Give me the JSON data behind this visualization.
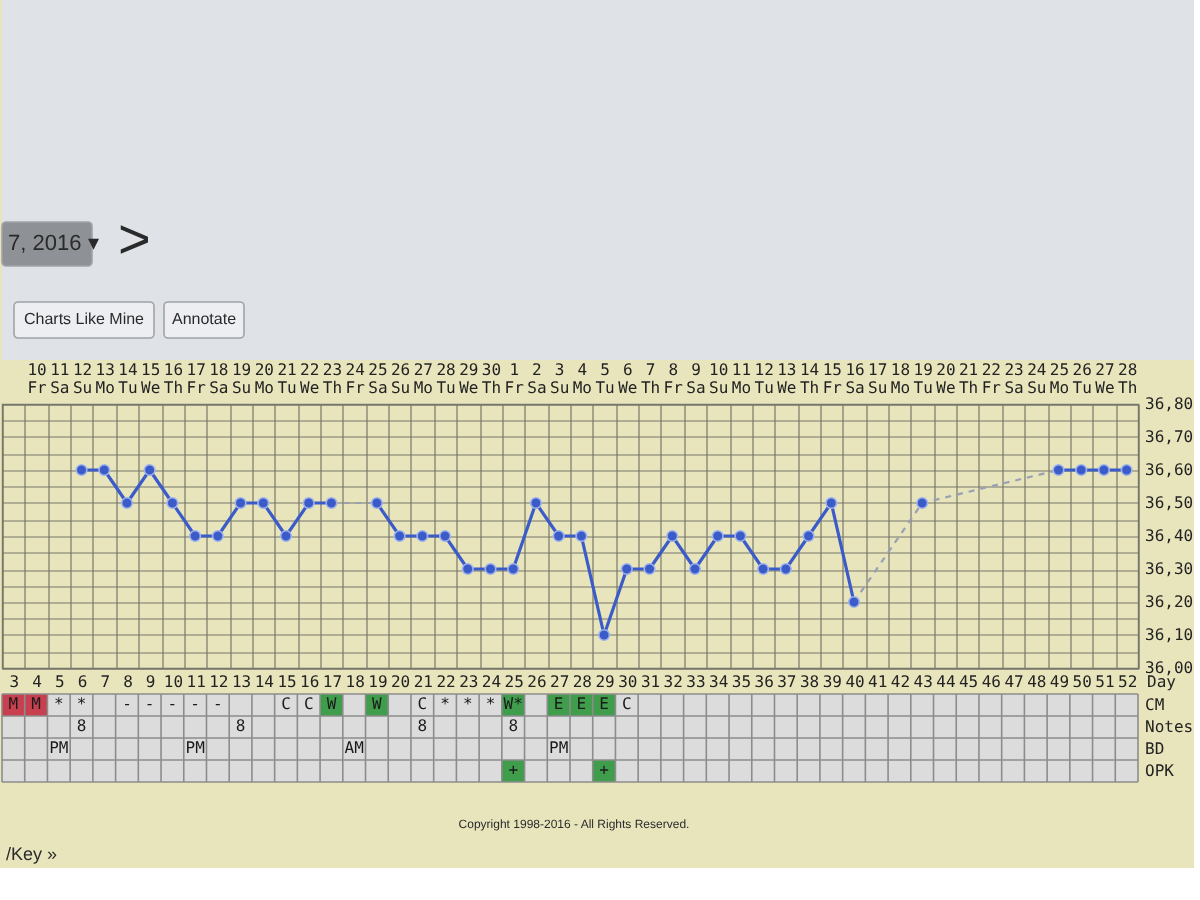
{
  "chart_data": [
    {
      "type": "line",
      "categories": [
        null,
        "10 Fr",
        "11 Sa",
        "12 Su",
        "13 Mo",
        "14 Tu",
        "15 We",
        "16 Th",
        "17 Fr",
        "18 Sa",
        "19 Su",
        "20 Mo",
        "21 Tu",
        "22 We",
        "23 Th",
        "24 Fr",
        "25 Sa",
        "26 Su",
        "27 Mo",
        "28 Tu",
        "29 We",
        "30 Th",
        "1 Fr",
        "2 Sa",
        "3 Su",
        "4 Mo",
        "5 Tu",
        "6 We",
        "7 Th",
        "8 Fr",
        "9 Sa",
        "10 Su",
        "11 Mo",
        "12 Tu",
        "13 We",
        "14 Th",
        "15 Fr",
        "16 Sa",
        "17 Su",
        "18 Mo",
        "19 Tu",
        "20 We",
        "21 Th",
        "22 Fr",
        "23 Sa",
        "24 Su",
        "25 Mo",
        "26 Tu",
        "27 We",
        "28 Th"
      ],
      "x2lim": [
        2.5,
        52.5
      ],
      "x2ticks": [
        3,
        4,
        5,
        6,
        7,
        8,
        9,
        10,
        11,
        12,
        13,
        14,
        15,
        16,
        17,
        18,
        19,
        20,
        21,
        22,
        23,
        24,
        25,
        26,
        27,
        28,
        29,
        30,
        31,
        32,
        33,
        34,
        35,
        36,
        37,
        38,
        39,
        40,
        41,
        42,
        43,
        44,
        45,
        46,
        47,
        48,
        49,
        50,
        51,
        52
      ],
      "x2label": "Day",
      "series": [
        {
          "color": "#9aa0b4",
          "line_style": "dashed",
          "marker": "none",
          "values": [
            null,
            null,
            null,
            null,
            null,
            null,
            null,
            null,
            null,
            null,
            null,
            null,
            null,
            null,
            36.5,
            null,
            36.5,
            null,
            null,
            null,
            null,
            null,
            null,
            null,
            null,
            null,
            null,
            null,
            null,
            null,
            null,
            null,
            null,
            null,
            null,
            null,
            null,
            null,
            null,
            null,
            null,
            null,
            null,
            null,
            null,
            null,
            null,
            null,
            null,
            null
          ]
        },
        {
          "color": "#9aa0b4",
          "line_style": "dashed",
          "marker": "none",
          "values": [
            null,
            null,
            null,
            null,
            null,
            null,
            null,
            null,
            null,
            null,
            null,
            null,
            null,
            null,
            null,
            null,
            null,
            null,
            null,
            null,
            null,
            null,
            null,
            null,
            null,
            null,
            null,
            null,
            null,
            null,
            null,
            null,
            null,
            null,
            null,
            null,
            null,
            36.2,
            null,
            null,
            36.5,
            null,
            null,
            null,
            null,
            null,
            36.6,
            null,
            null,
            null
          ]
        },
        {
          "color": "#3b5cc8",
          "values": [
            null,
            null,
            null,
            36.6,
            36.6,
            36.5,
            36.6,
            36.5,
            36.4,
            36.4,
            36.5,
            36.5,
            36.4,
            36.5,
            36.5,
            null,
            36.5,
            36.4,
            36.4,
            36.4,
            36.3,
            36.3,
            36.3,
            36.5,
            36.4,
            36.4,
            36.1,
            36.3,
            36.3,
            36.4,
            36.3,
            36.4,
            36.4,
            36.3,
            36.3,
            36.4,
            36.5,
            36.2,
            null,
            null,
            36.5,
            null,
            null,
            null,
            null,
            null,
            36.6,
            36.6,
            36.6,
            36.6
          ]
        }
      ],
      "ylim": [
        36.0,
        36.8
      ],
      "yticks": [
        {
          "value": 36.0,
          "label": "36,00"
        },
        {
          "value": 36.05,
          "label": null
        },
        {
          "value": 36.1,
          "label": "36,10"
        },
        {
          "value": 36.15,
          "label": null
        },
        {
          "value": 36.2,
          "label": "36,20"
        },
        {
          "value": 36.25,
          "label": null
        },
        {
          "value": 36.3,
          "label": "36,30"
        },
        {
          "value": 36.35,
          "label": null
        },
        {
          "value": 36.4,
          "label": "36,40"
        },
        {
          "value": 36.45,
          "label": null
        },
        {
          "value": 36.5,
          "label": "36,50"
        },
        {
          "value": 36.55,
          "label": null
        },
        {
          "value": 36.6,
          "label": "36,60"
        },
        {
          "value": 36.65,
          "label": null
        },
        {
          "value": 36.7,
          "label": "36,70"
        },
        {
          "value": 36.75,
          "label": null
        },
        {
          "value": 36.8,
          "label": "36,80"
        }
      ],
      "grid": true,
      "marker": "circle",
      "line_style": "solid",
      "annotations": [
        "7, 2016 ▾",
        ">",
        "Charts Like Mine",
        "Annotate",
        "Copyright 1998-2016 - All Rights Reserved.",
        "/Key »"
      ]
    },
    {
      "type": "other",
      "categories": [
        null,
        null,
        null,
        null,
        null,
        null,
        null,
        null,
        null,
        null,
        null,
        null,
        null,
        null,
        null,
        null,
        null,
        null,
        null,
        null,
        null,
        null,
        null,
        null,
        null,
        null,
        null,
        null,
        null,
        null,
        null,
        null,
        null,
        null,
        null,
        null,
        null,
        null,
        null,
        null,
        null,
        null,
        null,
        null,
        null,
        null,
        null,
        null,
        null,
        null
      ],
      "y_categories": [
        "CM",
        "Notes",
        "BD",
        "OPK"
      ],
      "cell_labels": [
        [
          "M",
          "M",
          "*",
          "*",
          null,
          "-",
          "-",
          "-",
          "-",
          "-",
          null,
          null,
          "C",
          "C",
          "W",
          null,
          "W",
          null,
          "C",
          "*",
          "*",
          "*",
          "W*",
          null,
          "E",
          "E",
          "E",
          "C",
          null,
          null,
          null,
          null,
          null,
          null,
          null,
          null,
          null,
          null,
          null,
          null,
          null,
          null,
          null,
          null,
          null,
          null,
          null,
          null,
          null,
          null
        ],
        [
          null,
          null,
          null,
          "8",
          null,
          null,
          null,
          null,
          null,
          null,
          "8",
          null,
          null,
          null,
          null,
          null,
          null,
          null,
          "8",
          null,
          null,
          null,
          "8",
          null,
          null,
          null,
          null,
          null,
          null,
          null,
          null,
          null,
          null,
          null,
          null,
          null,
          null,
          null,
          null,
          null,
          null,
          null,
          null,
          null,
          null,
          null,
          null,
          null,
          null,
          null
        ],
        [
          null,
          null,
          "PM",
          null,
          null,
          null,
          null,
          null,
          "PM",
          null,
          null,
          null,
          null,
          null,
          null,
          "AM",
          null,
          null,
          null,
          null,
          null,
          null,
          null,
          null,
          "PM",
          null,
          null,
          null,
          null,
          null,
          null,
          null,
          null,
          null,
          null,
          null,
          null,
          null,
          null,
          null,
          null,
          null,
          null,
          null,
          null,
          null,
          null,
          null,
          null,
          null
        ],
        [
          null,
          null,
          null,
          null,
          null,
          null,
          null,
          null,
          null,
          null,
          null,
          null,
          null,
          null,
          null,
          null,
          null,
          null,
          null,
          null,
          null,
          null,
          "+",
          null,
          null,
          null,
          "+",
          null,
          null,
          null,
          null,
          null,
          null,
          null,
          null,
          null,
          null,
          null,
          null,
          null,
          null,
          null,
          null,
          null,
          null,
          null,
          null,
          null,
          null,
          null
        ]
      ],
      "colors": [
        [
          "#c8404f",
          "#c8404f",
          null,
          null,
          null,
          null,
          null,
          null,
          null,
          null,
          null,
          null,
          null,
          null,
          "#3f9d4c",
          null,
          "#3f9d4c",
          null,
          null,
          null,
          null,
          null,
          "#3f9d4c",
          null,
          "#3f9d4c",
          "#3f9d4c",
          "#3f9d4c",
          null,
          null,
          null,
          null,
          null,
          null,
          null,
          null,
          null,
          null,
          null,
          null,
          null,
          null,
          null,
          null,
          null,
          null,
          null,
          null,
          null,
          null,
          null
        ],
        null,
        null,
        [
          null,
          null,
          null,
          null,
          null,
          null,
          null,
          null,
          null,
          null,
          null,
          null,
          null,
          null,
          null,
          null,
          null,
          null,
          null,
          null,
          null,
          null,
          "#3f9d4c",
          null,
          null,
          null,
          "#3f9d4c",
          null,
          null,
          null,
          null,
          null,
          null,
          null,
          null,
          null,
          null,
          null,
          null,
          null,
          null,
          null,
          null,
          null,
          null,
          null,
          null,
          null,
          null,
          null
        ]
      ]
    }
  ]
}
